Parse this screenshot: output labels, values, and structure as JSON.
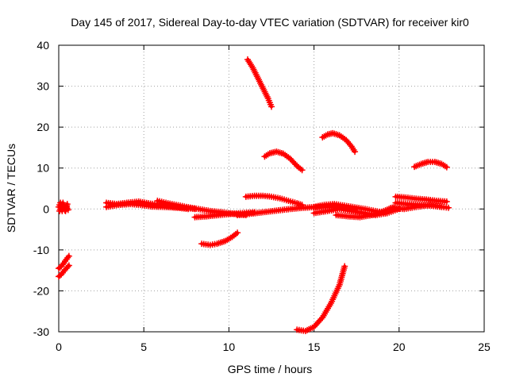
{
  "chart_data": {
    "type": "scatter",
    "title": "Day 145 of 2017, Sidereal Day-to-day VTEC variation (SDTVAR) for receiver kir0",
    "xlabel": "GPS time / hours",
    "ylabel": "SDTVAR / TECUs",
    "xlim": [
      0,
      25
    ],
    "ylim": [
      -30,
      40
    ],
    "xticks": [
      0,
      5,
      10,
      15,
      20,
      25
    ],
    "yticks": [
      -30,
      -20,
      -10,
      0,
      10,
      20,
      30,
      40
    ],
    "xtick_labels": [
      "0",
      "5",
      "10",
      "15",
      "20",
      "25"
    ],
    "ytick_labels": [
      "-30",
      "-20",
      "-10",
      "0",
      "10",
      "20",
      "30",
      "40"
    ],
    "grid": true,
    "marker": "plus",
    "color": "#ff0000",
    "series": [
      {
        "x": [
          0.0,
          0.1,
          0.2,
          0.3,
          0.4,
          0.5
        ],
        "y": [
          0.5,
          1.5,
          -0.5,
          1.0,
          -0.5,
          1.2
        ]
      },
      {
        "x": [
          0.05,
          0.15,
          0.25,
          0.35,
          0.45,
          0.55
        ],
        "y": [
          -0.5,
          0.8,
          1.5,
          -0.3,
          0.5,
          -0.2
        ]
      },
      {
        "x": [
          0.0,
          0.15,
          0.3,
          0.45,
          0.6
        ],
        "y": [
          -14.5,
          -14.0,
          -13.2,
          -12.3,
          -11.5
        ]
      },
      {
        "x": [
          0.0,
          0.15,
          0.3,
          0.45,
          0.6
        ],
        "y": [
          -16.5,
          -16.0,
          -15.2,
          -14.5,
          -13.8
        ]
      },
      {
        "x": [
          2.8,
          3.5,
          4.2,
          4.8,
          5.5,
          6.2,
          7.0,
          7.6
        ],
        "y": [
          0.5,
          1.0,
          1.2,
          1.0,
          0.6,
          0.5,
          0.3,
          0.0
        ]
      },
      {
        "x": [
          2.8,
          3.4,
          4.0,
          4.7,
          5.4,
          6.0,
          6.7,
          7.4,
          8.0
        ],
        "y": [
          1.5,
          1.2,
          1.5,
          1.8,
          1.3,
          1.0,
          0.6,
          0.3,
          0.0
        ]
      },
      {
        "x": [
          5.8,
          6.3,
          6.9,
          7.5,
          8.2,
          8.9,
          9.6,
          10.3,
          11.0
        ],
        "y": [
          2.0,
          1.5,
          1.0,
          0.5,
          0.0,
          -0.5,
          -0.8,
          -1.2,
          -1.5
        ]
      },
      {
        "x": [
          8.0,
          8.7,
          9.4,
          10.1,
          10.8,
          11.5
        ],
        "y": [
          -2.0,
          -1.8,
          -1.5,
          -1.2,
          -1.0,
          -0.8
        ]
      },
      {
        "x": [
          8.4,
          8.9,
          9.3,
          9.8,
          10.2,
          10.5
        ],
        "y": [
          -8.5,
          -8.8,
          -8.5,
          -7.8,
          -6.8,
          -5.8
        ]
      },
      {
        "x": [
          11.1,
          11.4,
          11.7,
          12.0,
          12.3,
          12.5
        ],
        "y": [
          36.5,
          34.5,
          32.0,
          29.5,
          27.0,
          25.0
        ]
      },
      {
        "x": [
          11.0,
          11.5,
          12.0,
          12.5,
          13.0,
          13.5,
          14.0,
          14.3
        ],
        "y": [
          3.0,
          3.2,
          3.2,
          3.0,
          2.6,
          2.0,
          1.4,
          1.0
        ]
      },
      {
        "x": [
          12.1,
          12.4,
          12.8,
          13.2,
          13.6,
          14.0,
          14.3
        ],
        "y": [
          12.8,
          13.6,
          14.0,
          13.5,
          12.3,
          10.5,
          9.5
        ]
      },
      {
        "x": [
          10.5,
          11.2,
          12.0,
          12.8,
          13.6,
          14.4,
          15.2,
          16.0,
          16.8,
          17.5
        ],
        "y": [
          -1.5,
          -1.2,
          -0.8,
          -0.4,
          0.0,
          0.3,
          0.5,
          0.6,
          0.3,
          0.0
        ]
      },
      {
        "x": [
          14.0,
          14.5,
          15.0,
          15.5,
          16.0,
          16.5,
          16.8
        ],
        "y": [
          -29.5,
          -29.8,
          -28.8,
          -26.5,
          -23.0,
          -18.5,
          -14.0
        ]
      },
      {
        "x": [
          15.5,
          15.8,
          16.1,
          16.5,
          16.9,
          17.2,
          17.4
        ],
        "y": [
          17.5,
          18.2,
          18.5,
          18.0,
          16.8,
          15.3,
          14.0
        ]
      },
      {
        "x": [
          15.0,
          15.6,
          16.2,
          16.8,
          17.4,
          18.0,
          18.6,
          19.2
        ],
        "y": [
          0.5,
          1.0,
          1.2,
          0.8,
          0.4,
          0.0,
          -0.5,
          -1.0
        ]
      },
      {
        "x": [
          15.0,
          15.8,
          16.5,
          17.2,
          17.9,
          18.6,
          19.3,
          20.0
        ],
        "y": [
          -1.0,
          -0.5,
          0.0,
          -0.5,
          -1.0,
          -1.5,
          -1.0,
          0.0
        ]
      },
      {
        "x": [
          16.3,
          17.0,
          17.7,
          18.4,
          19.1,
          19.7
        ],
        "y": [
          -1.5,
          -1.8,
          -2.0,
          -1.5,
          -0.5,
          0.5
        ]
      },
      {
        "x": [
          19.8,
          20.4,
          21.0,
          21.6,
          22.2,
          22.8
        ],
        "y": [
          3.0,
          2.8,
          2.5,
          2.3,
          2.0,
          1.8
        ]
      },
      {
        "x": [
          19.8,
          20.5,
          21.2,
          21.9,
          22.5,
          22.9
        ],
        "y": [
          1.5,
          1.2,
          1.0,
          0.8,
          0.5,
          0.3
        ]
      },
      {
        "x": [
          19.5,
          20.3,
          21.0,
          21.8,
          22.5
        ],
        "y": [
          0.2,
          0.0,
          0.5,
          1.0,
          0.6
        ]
      },
      {
        "x": [
          20.9,
          21.3,
          21.7,
          22.1,
          22.5,
          22.8
        ],
        "y": [
          10.3,
          11.0,
          11.5,
          11.5,
          11.0,
          10.2
        ]
      }
    ]
  }
}
